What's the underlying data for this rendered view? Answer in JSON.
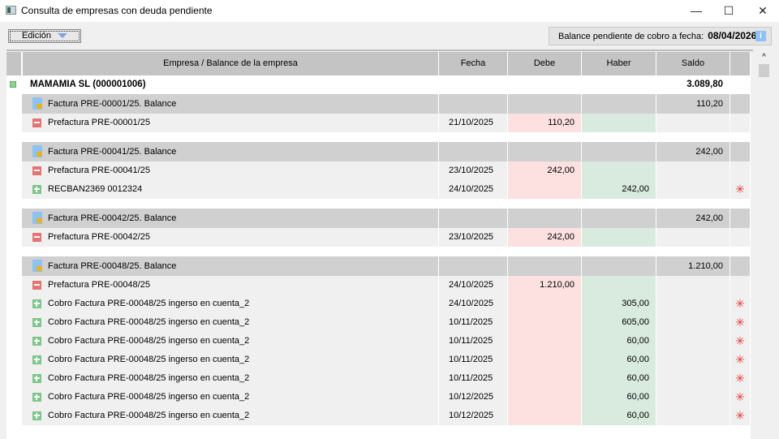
{
  "window": {
    "title": "Consulta de empresas con deuda pendiente",
    "minimize": "—",
    "maximize": "☐",
    "close": "✕"
  },
  "toolbar": {
    "edit_label": "Edición",
    "balance_label": "Balance pendiente de cobro a fecha:",
    "balance_date": "08/04/2026",
    "info": "i"
  },
  "columns": [
    "Empresa / Balance de la empresa",
    "Fecha",
    "Debe",
    "Haber",
    "Saldo"
  ],
  "company": {
    "name": "MAMAMIA SL (000001006)",
    "saldo": "3.089,80"
  },
  "colors": {
    "group": "#d0d0d0",
    "line": "#f0f0f0",
    "debe": "#fde0e0",
    "haber": "#d9eadf",
    "star": "#e53935"
  },
  "rows": [
    {
      "type": "group",
      "label": "Factura PRE-00001/25. Balance",
      "saldo": "110,20"
    },
    {
      "type": "debit",
      "label": "Prefactura PRE-00001/25",
      "fecha": "21/10/2025",
      "debe": "110,20",
      "haber": ""
    },
    {
      "type": "gap"
    },
    {
      "type": "group",
      "label": "Factura PRE-00041/25. Balance",
      "saldo": "242,00"
    },
    {
      "type": "debit",
      "label": "Prefactura PRE-00041/25",
      "fecha": "23/10/2025",
      "debe": "242,00",
      "haber": ""
    },
    {
      "type": "credit",
      "label": "RECBAN2369 0012324",
      "fecha": "24/10/2025",
      "debe": "",
      "haber": "242,00",
      "mark": "✳"
    },
    {
      "type": "gap"
    },
    {
      "type": "group",
      "label": "Factura PRE-00042/25. Balance",
      "saldo": "242,00"
    },
    {
      "type": "debit",
      "label": "Prefactura PRE-00042/25",
      "fecha": "23/10/2025",
      "debe": "242,00",
      "haber": ""
    },
    {
      "type": "gap"
    },
    {
      "type": "group",
      "label": "Factura PRE-00048/25. Balance",
      "saldo": "1.210,00"
    },
    {
      "type": "debit",
      "label": "Prefactura PRE-00048/25",
      "fecha": "24/10/2025",
      "debe": "1.210,00",
      "haber": ""
    },
    {
      "type": "credit",
      "label": "Cobro Factura PRE-00048/25 ingerso en cuenta_2",
      "fecha": "24/10/2025",
      "debe": "",
      "haber": "305,00",
      "mark": "✳"
    },
    {
      "type": "credit",
      "label": "Cobro Factura PRE-00048/25 ingerso en cuenta_2",
      "fecha": "10/11/2025",
      "debe": "",
      "haber": "605,00",
      "mark": "✳"
    },
    {
      "type": "credit",
      "label": "Cobro Factura PRE-00048/25 ingerso en cuenta_2",
      "fecha": "10/11/2025",
      "debe": "",
      "haber": "60,00",
      "mark": "✳"
    },
    {
      "type": "credit",
      "label": "Cobro Factura PRE-00048/25 ingerso en cuenta_2",
      "fecha": "10/11/2025",
      "debe": "",
      "haber": "60,00",
      "mark": "✳"
    },
    {
      "type": "credit",
      "label": "Cobro Factura PRE-00048/25 ingerso en cuenta_2",
      "fecha": "10/11/2025",
      "debe": "",
      "haber": "60,00",
      "mark": "✳"
    },
    {
      "type": "credit",
      "label": "Cobro Factura PRE-00048/25 ingerso en cuenta_2",
      "fecha": "10/12/2025",
      "debe": "",
      "haber": "60,00",
      "mark": "✳"
    },
    {
      "type": "credit",
      "label": "Cobro Factura PRE-00048/25 ingerso en cuenta_2",
      "fecha": "10/12/2025",
      "debe": "",
      "haber": "60,00",
      "mark": "✳"
    }
  ]
}
